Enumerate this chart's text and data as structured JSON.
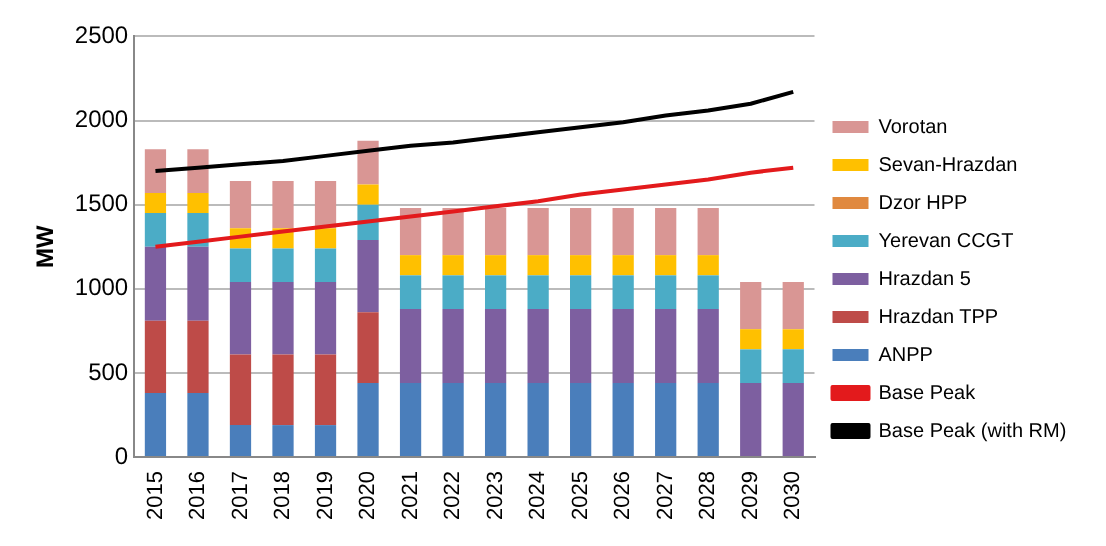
{
  "chart_data": {
    "type": "bar",
    "stacked": true,
    "ylabel": "MW",
    "categories": [
      "2015",
      "2016",
      "2017",
      "2018",
      "2019",
      "2020",
      "2021",
      "2022",
      "2023",
      "2024",
      "2025",
      "2026",
      "2027",
      "2028",
      "2029",
      "2030"
    ],
    "ylim": [
      0,
      2500
    ],
    "yticks": [
      0,
      500,
      1000,
      1500,
      2000,
      2500
    ],
    "grid": "y",
    "legend": "right",
    "series": [
      {
        "name": "ANPP",
        "color": "#4a7ebb",
        "values": [
          380,
          380,
          190,
          190,
          190,
          440,
          440,
          440,
          440,
          440,
          440,
          440,
          440,
          440,
          0,
          0
        ]
      },
      {
        "name": "Hrazdan TPP",
        "color": "#be4b48",
        "values": [
          430,
          430,
          420,
          420,
          420,
          420,
          0,
          0,
          0,
          0,
          0,
          0,
          0,
          0,
          0,
          0
        ]
      },
      {
        "name": "Hrazdan 5",
        "color": "#7d5fa0",
        "values": [
          440,
          440,
          430,
          430,
          430,
          430,
          440,
          440,
          440,
          440,
          440,
          440,
          440,
          440,
          440,
          440
        ]
      },
      {
        "name": "Yerevan CCGT",
        "color": "#4bacc6",
        "values": [
          200,
          200,
          200,
          200,
          200,
          210,
          200,
          200,
          200,
          200,
          200,
          200,
          200,
          200,
          200,
          200
        ]
      },
      {
        "name": "Dzor HPP",
        "color": "#e0893f",
        "values": [
          0,
          0,
          0,
          0,
          0,
          0,
          0,
          0,
          0,
          0,
          0,
          0,
          0,
          0,
          0,
          0
        ]
      },
      {
        "name": "Sevan-Hrazdan",
        "color": "#ffc000",
        "values": [
          120,
          120,
          120,
          120,
          120,
          120,
          120,
          120,
          120,
          120,
          120,
          120,
          120,
          120,
          120,
          120
        ]
      },
      {
        "name": "Vorotan",
        "color": "#d99694",
        "values": [
          260,
          260,
          280,
          280,
          280,
          260,
          280,
          280,
          280,
          280,
          280,
          280,
          280,
          280,
          280,
          280
        ]
      },
      {
        "name": "Base Peak",
        "type": "line",
        "color": "#e31a1c",
        "values": [
          1250,
          1280,
          1310,
          1340,
          1370,
          1400,
          1430,
          1460,
          1490,
          1520,
          1560,
          1590,
          1620,
          1650,
          1690,
          1720
        ]
      },
      {
        "name": "Base Peak (with RM)",
        "type": "line",
        "color": "#000000",
        "values": [
          1700,
          1720,
          1740,
          1760,
          1790,
          1820,
          1850,
          1870,
          1900,
          1930,
          1960,
          1990,
          2030,
          2060,
          2100,
          2170
        ]
      }
    ]
  }
}
